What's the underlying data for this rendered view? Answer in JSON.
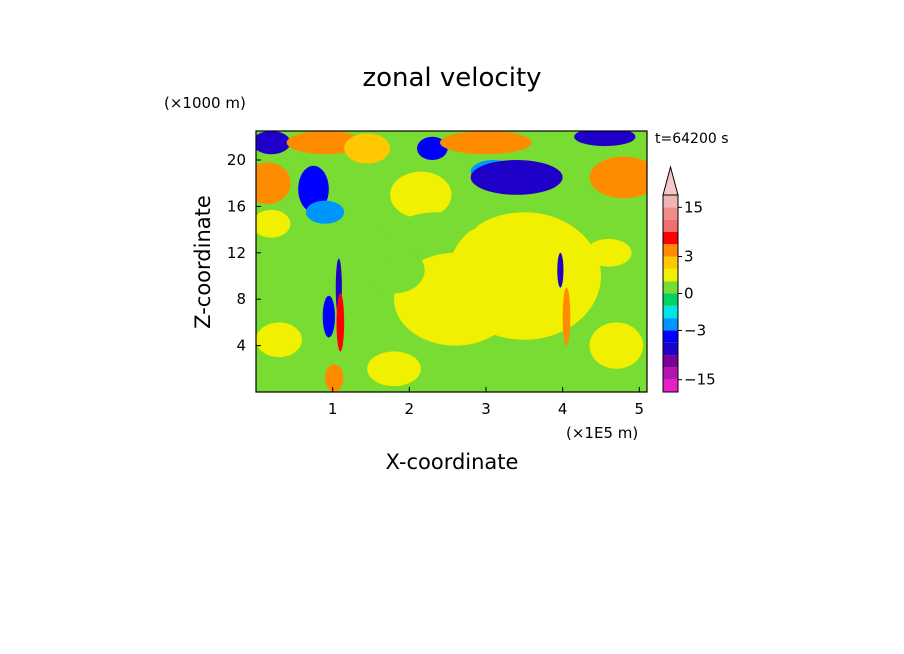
{
  "chart_data": {
    "type": "heatmap",
    "title": "zonal velocity",
    "xlabel": "X-coordinate",
    "ylabel": "Z-coordinate",
    "x_unit": "(×1E5 m)",
    "y_unit": "(×1000 m)",
    "time_label": "t=64200 s",
    "xlim": [
      0,
      5.1
    ],
    "ylim": [
      0,
      22.5
    ],
    "x_ticks": [
      1,
      2,
      3,
      4,
      5
    ],
    "y_ticks": [
      4,
      8,
      12,
      16,
      20
    ],
    "colorbar": {
      "levels": [
        -18,
        -15,
        -12,
        -9,
        -6,
        -3,
        -2,
        -1,
        0,
        1,
        2,
        3,
        6,
        9,
        12,
        15,
        18
      ],
      "colors": [
        "#e81ec8",
        "#b414b4",
        "#780096",
        "#1e00c8",
        "#0000ff",
        "#0096ff",
        "#00e6e6",
        "#00d264",
        "#78dc32",
        "#f0f000",
        "#ffc800",
        "#ff8c00",
        "#ff0000",
        "#f06e6e",
        "#f08c8c",
        "#f0b4b4"
      ],
      "over_color": "#f5c8c8",
      "tick_labels": [
        15,
        3,
        0,
        -3,
        -15
      ]
    },
    "features": [
      {
        "x": 0.2,
        "z": 21.5,
        "rx": 0.25,
        "rz": 1.0,
        "value": -8
      },
      {
        "x": 0.9,
        "z": 21.5,
        "rx": 0.5,
        "rz": 1.0,
        "value": 4
      },
      {
        "x": 0.15,
        "z": 18.0,
        "rx": 0.3,
        "rz": 1.8,
        "value": 5
      },
      {
        "x": 0.75,
        "z": 17.5,
        "rx": 0.2,
        "rz": 2.0,
        "value": -6
      },
      {
        "x": 0.9,
        "z": 15.5,
        "rx": 0.25,
        "rz": 1.0,
        "value": -3
      },
      {
        "x": 1.45,
        "z": 21.0,
        "rx": 0.3,
        "rz": 1.3,
        "value": 2
      },
      {
        "x": 2.3,
        "z": 21.0,
        "rx": 0.2,
        "rz": 1.0,
        "value": -6
      },
      {
        "x": 2.15,
        "z": 17.0,
        "rx": 0.4,
        "rz": 2.0,
        "value": 1
      },
      {
        "x": 3.0,
        "z": 21.5,
        "rx": 0.6,
        "rz": 1.0,
        "value": 3
      },
      {
        "x": 3.1,
        "z": 19.0,
        "rx": 0.3,
        "rz": 1.0,
        "value": -3
      },
      {
        "x": 3.4,
        "z": 18.5,
        "rx": 0.6,
        "rz": 1.5,
        "value": -8
      },
      {
        "x": 4.55,
        "z": 22.0,
        "rx": 0.4,
        "rz": 0.8,
        "value": -8
      },
      {
        "x": 4.8,
        "z": 18.5,
        "rx": 0.45,
        "rz": 1.8,
        "value": 4
      },
      {
        "x": 3.5,
        "z": 10.0,
        "rx": 1.0,
        "rz": 5.5,
        "value": 1
      },
      {
        "x": 2.6,
        "z": 8.0,
        "rx": 0.8,
        "rz": 4.0,
        "value": 1
      },
      {
        "x": 1.8,
        "z": 10.5,
        "rx": 0.4,
        "rz": 2.0,
        "value": 0.5
      },
      {
        "x": 0.3,
        "z": 4.5,
        "rx": 0.3,
        "rz": 1.5,
        "value": 1
      },
      {
        "x": 0.2,
        "z": 14.5,
        "rx": 0.25,
        "rz": 1.2,
        "value": 1
      },
      {
        "x": 0.5,
        "z": 12.0,
        "rx": 0.2,
        "rz": 1.0,
        "value": 0.5
      },
      {
        "x": 1.8,
        "z": 2.0,
        "rx": 0.35,
        "rz": 1.5,
        "value": 1
      },
      {
        "x": 4.7,
        "z": 4.0,
        "rx": 0.35,
        "rz": 2.0,
        "value": 1
      },
      {
        "x": 4.6,
        "z": 12.0,
        "rx": 0.3,
        "rz": 1.2,
        "value": 1
      },
      {
        "x": 0.95,
        "z": 6.5,
        "rx": 0.08,
        "rz": 1.8,
        "value": -5
      },
      {
        "x": 1.08,
        "z": 9.0,
        "rx": 0.04,
        "rz": 2.5,
        "value": -9
      },
      {
        "x": 1.1,
        "z": 6.0,
        "rx": 0.05,
        "rz": 2.5,
        "value": 8
      },
      {
        "x": 1.02,
        "z": 1.2,
        "rx": 0.12,
        "rz": 1.2,
        "value": 4
      },
      {
        "x": 3.97,
        "z": 10.5,
        "rx": 0.04,
        "rz": 1.5,
        "value": -9
      },
      {
        "x": 4.05,
        "z": 6.5,
        "rx": 0.05,
        "rz": 2.5,
        "value": 3
      },
      {
        "x": 1.45,
        "z": 12.5,
        "rx": 0.35,
        "rz": 1.5,
        "value": 0.5
      },
      {
        "x": 2.4,
        "z": 14.5,
        "rx": 0.5,
        "rz": 1.0,
        "value": 0.4
      }
    ]
  }
}
